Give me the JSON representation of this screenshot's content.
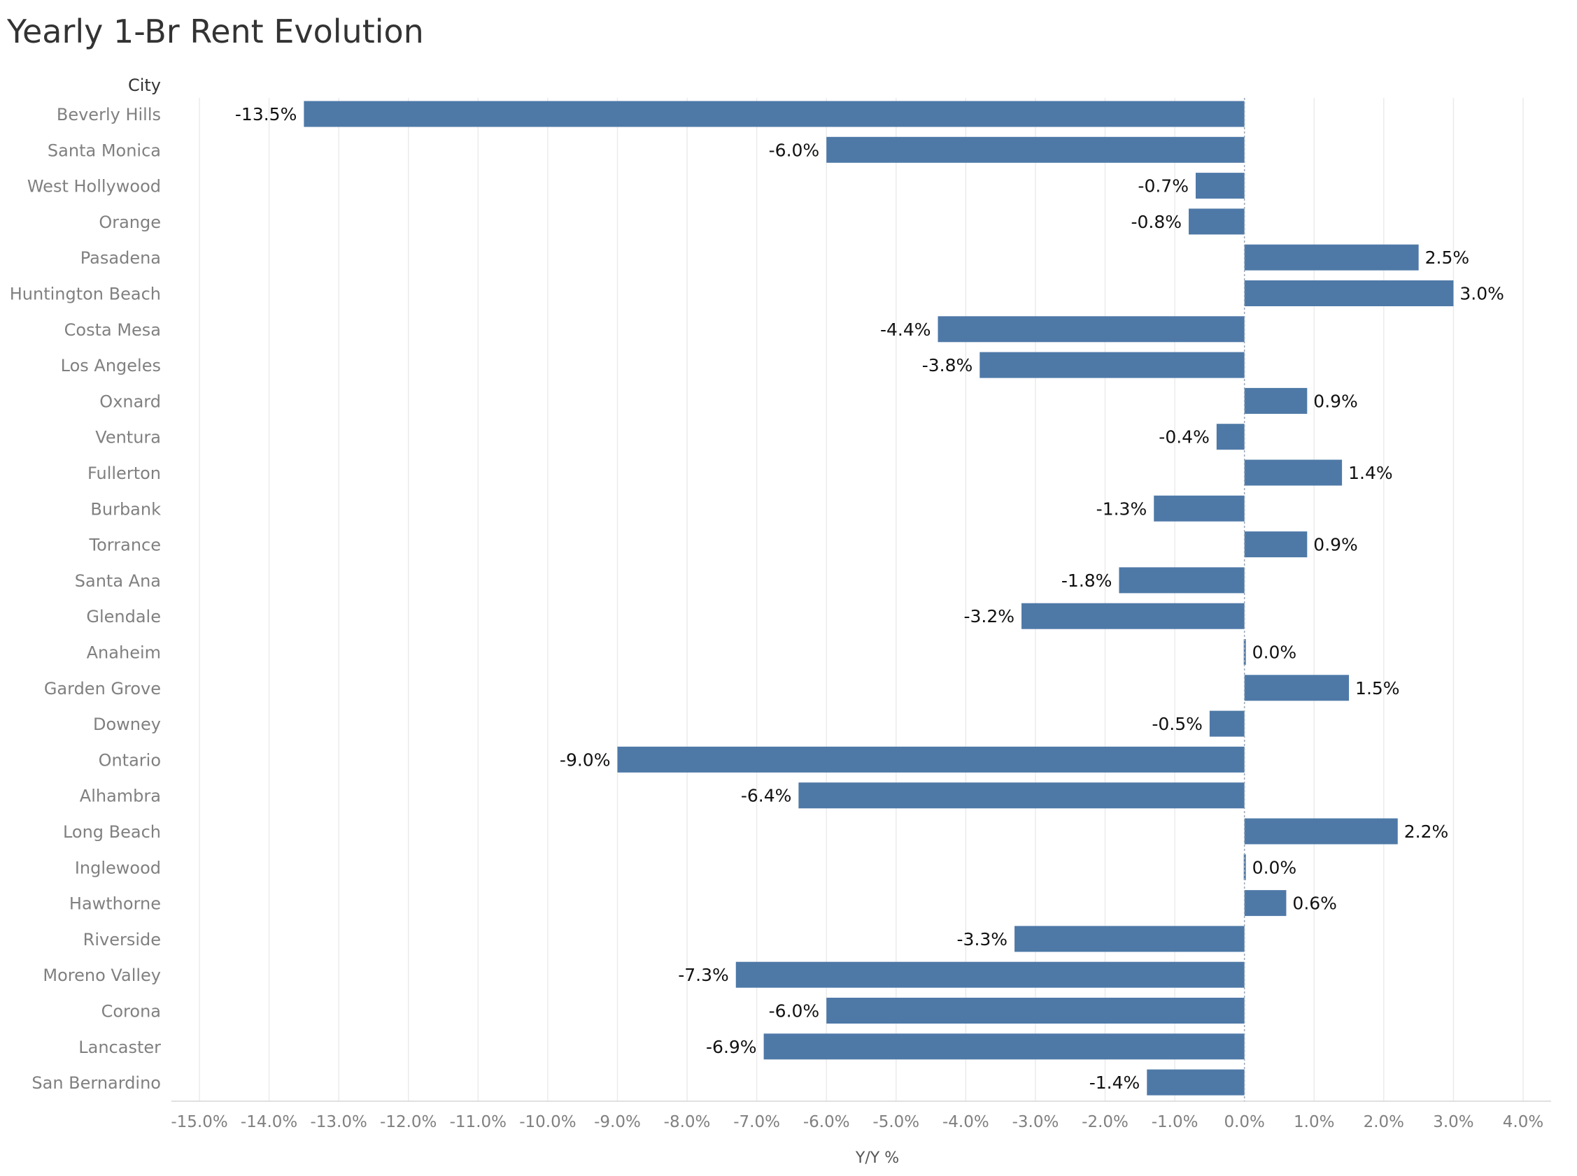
{
  "title": "Yearly 1-Br Rent Evolution",
  "chart_data": {
    "type": "bar",
    "orientation": "horizontal",
    "title": "Yearly 1-Br Rent Evolution",
    "ylabel": "City",
    "xlabel": "Y/Y %",
    "xlim": [
      -15,
      4
    ],
    "x_ticks": [
      "-15.0%",
      "-14.0%",
      "-13.0%",
      "-12.0%",
      "-11.0%",
      "-10.0%",
      "-9.0%",
      "-8.0%",
      "-7.0%",
      "-6.0%",
      "-5.0%",
      "-4.0%",
      "-3.0%",
      "-2.0%",
      "-1.0%",
      "0.0%",
      "1.0%",
      "2.0%",
      "3.0%",
      "4.0%"
    ],
    "bar_color": "#4e79a7",
    "grid": true,
    "categories": [
      "Beverly Hills",
      "Santa Monica",
      "West Hollywood",
      "Orange",
      "Pasadena",
      "Huntington Beach",
      "Costa Mesa",
      "Los Angeles",
      "Oxnard",
      "Ventura",
      "Fullerton",
      "Burbank",
      "Torrance",
      "Santa Ana",
      "Glendale",
      "Anaheim",
      "Garden Grove",
      "Downey",
      "Ontario",
      "Alhambra",
      "Long Beach",
      "Inglewood",
      "Hawthorne",
      "Riverside",
      "Moreno Valley",
      "Corona",
      "Lancaster",
      "San Bernardino"
    ],
    "values": [
      -13.5,
      -6.0,
      -0.7,
      -0.8,
      2.5,
      3.0,
      -4.4,
      -3.8,
      0.9,
      -0.4,
      1.4,
      -1.3,
      0.9,
      -1.8,
      -3.2,
      0.0,
      1.5,
      -0.5,
      -9.0,
      -6.4,
      2.2,
      0.0,
      0.6,
      -3.3,
      -7.3,
      -6.0,
      -6.9,
      -1.4
    ],
    "data_labels": [
      "-13.5%",
      "-6.0%",
      "-0.7%",
      "-0.8%",
      "2.5%",
      "3.0%",
      "-4.4%",
      "-3.8%",
      "0.9%",
      "-0.4%",
      "1.4%",
      "-1.3%",
      "0.9%",
      "-1.8%",
      "-3.2%",
      "0.0%",
      "1.5%",
      "-0.5%",
      "-9.0%",
      "-6.4%",
      "2.2%",
      "0.0%",
      "0.6%",
      "-3.3%",
      "-7.3%",
      "-6.0%",
      "-6.9%",
      "-1.4%"
    ]
  }
}
